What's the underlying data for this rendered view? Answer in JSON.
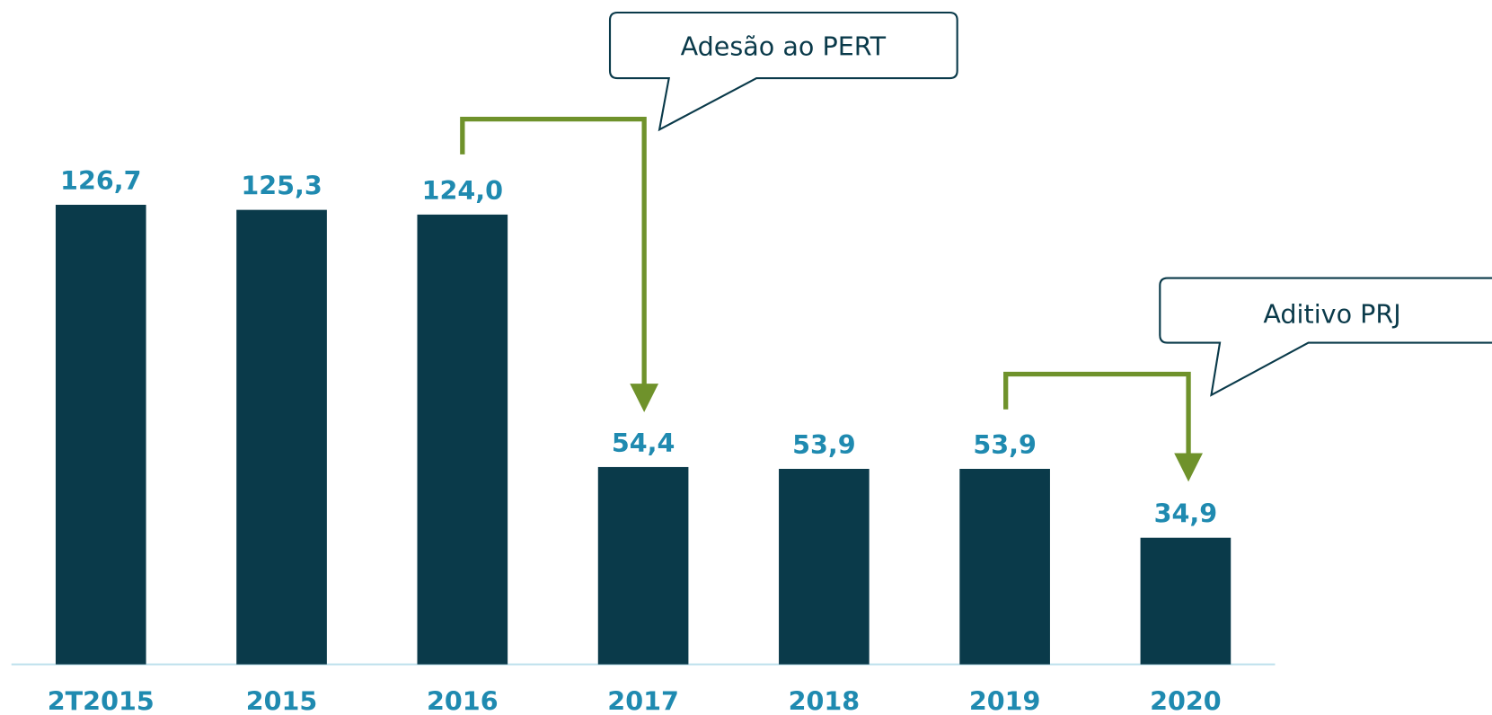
{
  "chart_data": {
    "type": "bar",
    "categories": [
      "2T2015",
      "2015",
      "2016",
      "2017",
      "2018",
      "2019",
      "2020"
    ],
    "values": [
      126.7,
      125.3,
      124.0,
      54.4,
      53.9,
      53.9,
      34.9
    ],
    "value_labels": [
      "126,7",
      "125,3",
      "124,0",
      "54,4",
      "53,9",
      "53,9",
      "34,9"
    ],
    "color": "#0a3a4a",
    "annotations": [
      "Adesão ao PERT",
      "Aditivo PRJ"
    ]
  }
}
